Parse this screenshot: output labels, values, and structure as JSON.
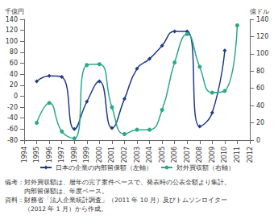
{
  "chart_data": {
    "type": "line",
    "ylabel": "千億円",
    "y2label": "億ドル",
    "categories": [
      "1994",
      "1995",
      "1996",
      "1997",
      "1998",
      "1999",
      "2000",
      "2001",
      "2002",
      "2003",
      "2004",
      "2005",
      "2006",
      "2007",
      "2008",
      "2009",
      "2010",
      "2011",
      "2012"
    ],
    "series": [
      {
        "name": "日本の企業の内部留保額（左軸）",
        "color": "#1f3a8a",
        "marker": "diamond",
        "values": [
          null,
          27,
          37,
          35,
          -60,
          -10,
          27,
          -58,
          -5,
          50,
          68,
          92,
          118,
          118,
          -55,
          -30,
          83,
          null,
          null
        ]
      },
      {
        "name": "対外買収額（右軸）",
        "color": "#2aa889",
        "marker": "circle",
        "axis": "y2",
        "values": [
          null,
          20,
          43,
          10,
          2,
          87,
          88,
          38,
          7,
          12,
          12,
          35,
          90,
          123,
          85,
          55,
          57,
          133,
          null
        ]
      }
    ],
    "ylim": [
      -80,
      140
    ],
    "yticks": [
      -80,
      -60,
      -40,
      -20,
      0,
      20,
      40,
      60,
      80,
      100,
      120,
      140
    ],
    "y2lim": [
      0,
      140
    ],
    "y2ticks": [
      0,
      20,
      40,
      60,
      80,
      100,
      120,
      140
    ],
    "grid": false,
    "legend": "bottom",
    "annotations": [
      "備考：対外買収額は、暦年の完了案件ベースで、発表時の公表金額より集計。",
      "　　　内部留保額は、年度ベース。",
      "資料：財務省「法人企業統計調査」（2011 年 10 月）及びトムソンロイター",
      "　　　（2012 年 1 月）から作成。"
    ]
  }
}
